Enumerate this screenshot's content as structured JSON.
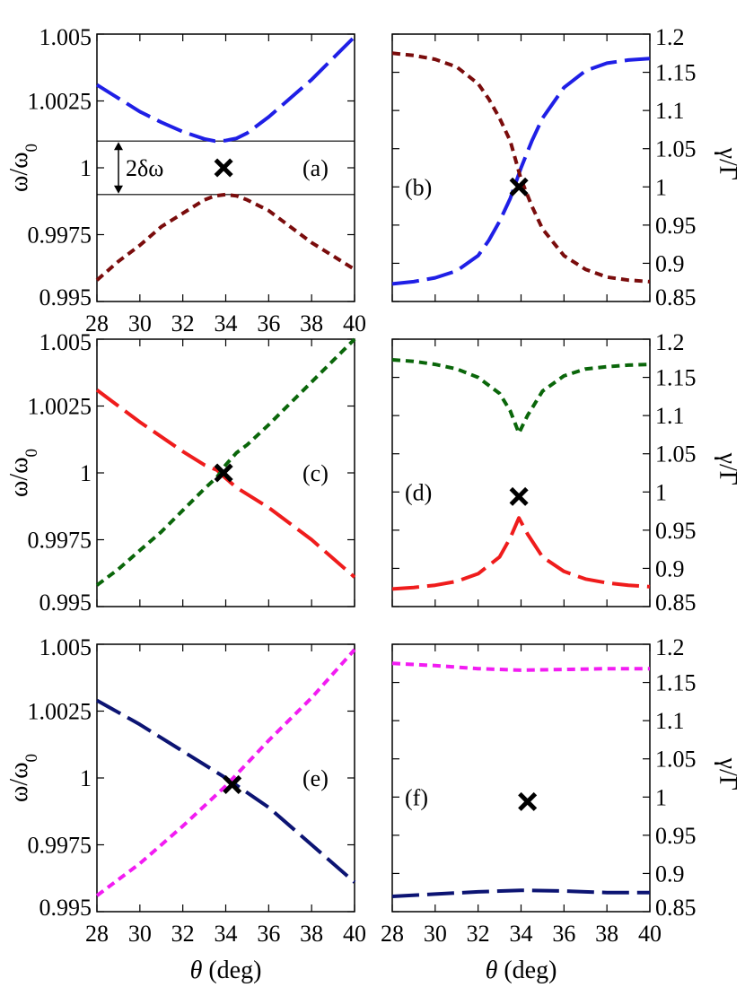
{
  "colors": {
    "blue": "#1f1fe6",
    "darkred": "#7a0c0c",
    "red": "#ef1c1c",
    "green": "#0a660a",
    "navy": "#0c1473",
    "magenta": "#f21cf2",
    "marker": "#000000"
  },
  "labels": {
    "ylabel_left": "ω/ω",
    "ylabel_left_sub": "0",
    "ylabel_right": "γ/Γ",
    "xlabel_theta": "θ",
    "xlabel_unit": " (deg)",
    "delta_omega": "2δω"
  },
  "chart_data": [
    {
      "panel": "(a)",
      "type": "line",
      "side": "left",
      "xlim": [
        28,
        40
      ],
      "ylim": [
        0.995,
        1.005
      ],
      "xticks": [
        "28",
        "30",
        "32",
        "34",
        "36",
        "38",
        "40"
      ],
      "yticks": [
        "0.995",
        "0.9975",
        "1",
        "1.0025",
        "1.005"
      ],
      "hlines": [
        1.001,
        0.999
      ],
      "annotation": "2δω",
      "marker": [
        33.9,
        1.0
      ],
      "series": [
        {
          "color": "blue",
          "dash": "long",
          "points": [
            [
              28,
              1.0031
            ],
            [
              29,
              1.0026
            ],
            [
              30,
              1.0021
            ],
            [
              31,
              1.0017
            ],
            [
              32,
              1.00135
            ],
            [
              33,
              1.00108
            ],
            [
              33.5,
              1.001
            ],
            [
              34,
              1.00102
            ],
            [
              34.5,
              1.0011
            ],
            [
              35,
              1.0013
            ],
            [
              36,
              1.0019
            ],
            [
              37,
              1.0026
            ],
            [
              38,
              1.0033
            ],
            [
              39,
              1.0041
            ],
            [
              40,
              1.0049
            ]
          ]
        },
        {
          "color": "darkred",
          "dash": "short",
          "points": [
            [
              28,
              0.9958
            ],
            [
              29,
              0.9965
            ],
            [
              30,
              0.9971
            ],
            [
              31,
              0.9978
            ],
            [
              32,
              0.9983
            ],
            [
              33,
              0.9988
            ],
            [
              33.5,
              0.99895
            ],
            [
              34,
              0.999
            ],
            [
              34.5,
              0.99895
            ],
            [
              35,
              0.9988
            ],
            [
              36,
              0.9984
            ],
            [
              37,
              0.9978
            ],
            [
              38,
              0.9972
            ],
            [
              39,
              0.9967
            ],
            [
              40,
              0.9962
            ]
          ]
        }
      ]
    },
    {
      "panel": "(b)",
      "type": "line",
      "side": "right",
      "xlim": [
        28,
        40
      ],
      "ylim": [
        0.85,
        1.2
      ],
      "yticks": [
        "0.85",
        "0.9",
        "0.95",
        "1",
        "1.05",
        "1.1",
        "1.15",
        "1.2"
      ],
      "marker": [
        33.9,
        1.0
      ],
      "series": [
        {
          "color": "blue",
          "dash": "long",
          "points": [
            [
              28,
              0.873
            ],
            [
              29,
              0.876
            ],
            [
              30,
              0.881
            ],
            [
              31,
              0.89
            ],
            [
              32,
              0.91
            ],
            [
              32.5,
              0.93
            ],
            [
              33,
              0.955
            ],
            [
              33.5,
              0.985
            ],
            [
              34,
              1.025
            ],
            [
              34.5,
              1.06
            ],
            [
              35,
              1.09
            ],
            [
              36,
              1.13
            ],
            [
              37,
              1.152
            ],
            [
              38,
              1.162
            ],
            [
              39,
              1.166
            ],
            [
              40,
              1.168
            ]
          ]
        },
        {
          "color": "darkred",
          "dash": "short",
          "points": [
            [
              28,
              1.175
            ],
            [
              29,
              1.172
            ],
            [
              30,
              1.167
            ],
            [
              31,
              1.157
            ],
            [
              32,
              1.135
            ],
            [
              32.5,
              1.115
            ],
            [
              33,
              1.09
            ],
            [
              33.5,
              1.06
            ],
            [
              34,
              1.01
            ],
            [
              34.5,
              0.975
            ],
            [
              35,
              0.945
            ],
            [
              36,
              0.91
            ],
            [
              37,
              0.892
            ],
            [
              38,
              0.882
            ],
            [
              39,
              0.878
            ],
            [
              40,
              0.876
            ]
          ]
        }
      ]
    },
    {
      "panel": "(c)",
      "type": "line",
      "side": "left",
      "xlim": [
        28,
        40
      ],
      "ylim": [
        0.995,
        1.005
      ],
      "yticks": [
        "0.995",
        "0.9975",
        "1",
        "1.0025",
        "1.005"
      ],
      "marker": [
        33.9,
        1.0
      ],
      "series": [
        {
          "color": "red",
          "dash": "long",
          "points": [
            [
              28,
              1.0031
            ],
            [
              29,
              1.0025
            ],
            [
              30,
              1.0019
            ],
            [
              31,
              1.00135
            ],
            [
              32,
              1.0008
            ],
            [
              33,
              1.0003
            ],
            [
              33.6,
              1.0001
            ],
            [
              34,
              0.9998
            ],
            [
              34.5,
              0.99945
            ],
            [
              35,
              0.9992
            ],
            [
              36,
              0.9987
            ],
            [
              37,
              0.9981
            ],
            [
              38,
              0.9975
            ],
            [
              39,
              0.9968
            ],
            [
              40,
              0.9961
            ]
          ]
        },
        {
          "color": "green",
          "dash": "short",
          "points": [
            [
              28,
              0.9958
            ],
            [
              29,
              0.9964
            ],
            [
              30,
              0.9971
            ],
            [
              31,
              0.9978
            ],
            [
              32,
              0.9986
            ],
            [
              33,
              0.9994
            ],
            [
              33.6,
              0.99985
            ],
            [
              34,
              1.0003
            ],
            [
              34.5,
              1.00075
            ],
            [
              35,
              1.00105
            ],
            [
              36,
              1.0018
            ],
            [
              37,
              1.0026
            ],
            [
              38,
              1.0034
            ],
            [
              39,
              1.0042
            ],
            [
              40,
              1.005
            ]
          ]
        }
      ]
    },
    {
      "panel": "(d)",
      "type": "line",
      "side": "right",
      "xlim": [
        28,
        40
      ],
      "ylim": [
        0.85,
        1.2
      ],
      "yticks": [
        "0.85",
        "0.9",
        "0.95",
        "1",
        "1.05",
        "1.1",
        "1.15",
        "1.2"
      ],
      "marker": [
        33.9,
        0.994
      ],
      "series": [
        {
          "color": "red",
          "dash": "long",
          "points": [
            [
              28,
              0.873
            ],
            [
              29,
              0.875
            ],
            [
              30,
              0.878
            ],
            [
              31,
              0.883
            ],
            [
              32,
              0.893
            ],
            [
              33,
              0.915
            ],
            [
              33.5,
              0.94
            ],
            [
              33.9,
              0.966
            ],
            [
              34.3,
              0.945
            ],
            [
              35,
              0.915
            ],
            [
              36,
              0.896
            ],
            [
              37,
              0.886
            ],
            [
              38,
              0.881
            ],
            [
              39,
              0.878
            ],
            [
              40,
              0.876
            ]
          ]
        },
        {
          "color": "green",
          "dash": "short",
          "points": [
            [
              28,
              1.173
            ],
            [
              29,
              1.171
            ],
            [
              30,
              1.167
            ],
            [
              31,
              1.161
            ],
            [
              32,
              1.15
            ],
            [
              33,
              1.129
            ],
            [
              33.5,
              1.106
            ],
            [
              33.9,
              1.077
            ],
            [
              34.3,
              1.1
            ],
            [
              35,
              1.132
            ],
            [
              36,
              1.152
            ],
            [
              37,
              1.161
            ],
            [
              38,
              1.164
            ],
            [
              39,
              1.166
            ],
            [
              40,
              1.167
            ]
          ]
        }
      ]
    },
    {
      "panel": "(e)",
      "type": "line",
      "side": "left",
      "xlim": [
        28,
        40
      ],
      "ylim": [
        0.995,
        1.005
      ],
      "xticks": [
        "28",
        "30",
        "32",
        "34",
        "36",
        "38",
        "40"
      ],
      "yticks": [
        "0.995",
        "0.9975",
        "1",
        "1.0025",
        "1.005"
      ],
      "xlabel": "θ (deg)",
      "marker": [
        34.3,
        0.99975
      ],
      "series": [
        {
          "color": "navy",
          "dash": "long",
          "points": [
            [
              28,
              1.0029
            ],
            [
              30,
              1.002
            ],
            [
              32,
              1.001
            ],
            [
              34,
              1.0
            ],
            [
              36,
              0.9989
            ],
            [
              38,
              0.9975
            ],
            [
              40,
              0.9961
            ]
          ]
        },
        {
          "color": "magenta",
          "dash": "short",
          "points": [
            [
              28,
              0.9956
            ],
            [
              30,
              0.9968
            ],
            [
              32,
              0.9982
            ],
            [
              34,
              0.9997
            ],
            [
              36,
              1.0014
            ],
            [
              38,
              1.003
            ],
            [
              40,
              1.0048
            ]
          ]
        }
      ]
    },
    {
      "panel": "(f)",
      "type": "line",
      "side": "right",
      "xlim": [
        28,
        40
      ],
      "ylim": [
        0.85,
        1.2
      ],
      "xticks": [
        "28",
        "30",
        "32",
        "34",
        "36",
        "38",
        "40"
      ],
      "yticks": [
        "0.85",
        "0.9",
        "0.95",
        "1",
        "1.05",
        "1.1",
        "1.15",
        "1.2"
      ],
      "xlabel": "θ (deg)",
      "marker": [
        34.3,
        0.994
      ],
      "series": [
        {
          "color": "navy",
          "dash": "long",
          "points": [
            [
              28,
              0.87
            ],
            [
              30,
              0.873
            ],
            [
              32,
              0.876
            ],
            [
              34,
              0.878
            ],
            [
              36,
              0.877
            ],
            [
              38,
              0.875
            ],
            [
              40,
              0.875
            ]
          ]
        },
        {
          "color": "magenta",
          "dash": "short",
          "points": [
            [
              28,
              1.175
            ],
            [
              30,
              1.172
            ],
            [
              32,
              1.168
            ],
            [
              34,
              1.166
            ],
            [
              36,
              1.167
            ],
            [
              38,
              1.168
            ],
            [
              40,
              1.168
            ]
          ]
        }
      ]
    }
  ]
}
